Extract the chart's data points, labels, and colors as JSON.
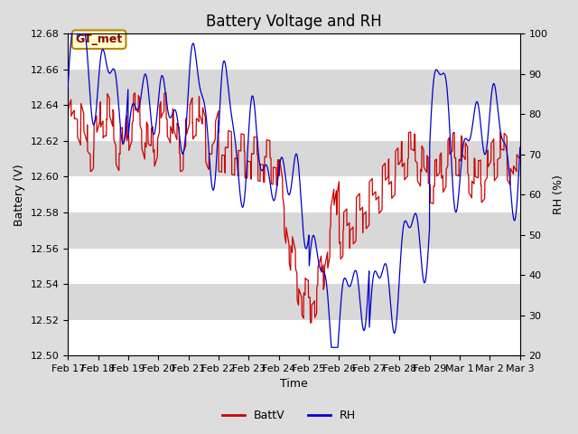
{
  "title": "Battery Voltage and RH",
  "xlabel": "Time",
  "ylabel_left": "Battery (V)",
  "ylabel_right": "RH (%)",
  "ylim_left": [
    12.5,
    12.68
  ],
  "ylim_right": [
    20,
    100
  ],
  "yticks_left": [
    12.5,
    12.52,
    12.54,
    12.56,
    12.58,
    12.6,
    12.62,
    12.64,
    12.66,
    12.68
  ],
  "yticks_right": [
    20,
    30,
    40,
    50,
    60,
    70,
    80,
    90,
    100
  ],
  "xtick_labels": [
    "Feb 17",
    "Feb 18",
    "Feb 19",
    "Feb 20",
    "Feb 21",
    "Feb 22",
    "Feb 23",
    "Feb 24",
    "Feb 25",
    "Feb 26",
    "Feb 27",
    "Feb 28",
    "Feb 29",
    "Mar 1",
    "Mar 2",
    "Mar 3"
  ],
  "annotation_text": "GT_met",
  "batt_color": "#cc0000",
  "rh_color": "#0000cc",
  "background_color": "#dddddd",
  "plot_bg_color": "#ffffff",
  "band_color_light": "#ffffff",
  "band_color_dark": "#d8d8d8",
  "title_fontsize": 12,
  "axis_fontsize": 9,
  "tick_fontsize": 8
}
